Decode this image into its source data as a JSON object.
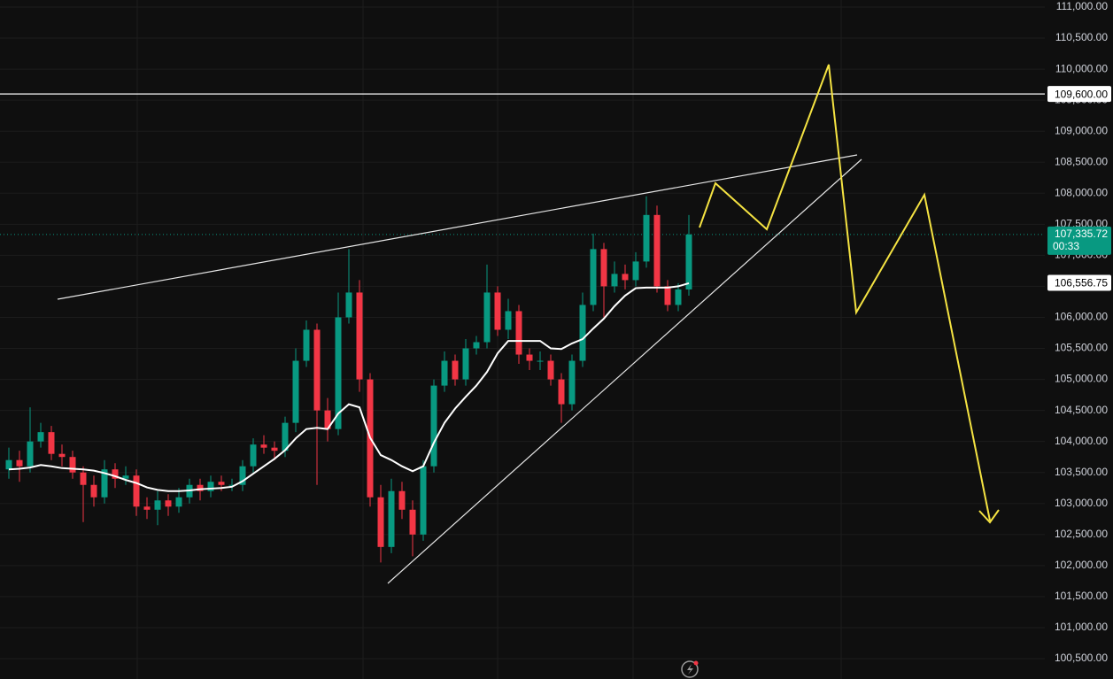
{
  "chart_data": {
    "type": "candlestick",
    "grid": true,
    "up_color": "#089981",
    "down_color": "#f23645",
    "ma_color": "#ffffff",
    "open": [
      103550,
      103700,
      103600,
      104000,
      104150,
      103800,
      103750,
      103500,
      103300,
      103100,
      103550,
      103400,
      103450,
      102950,
      102900,
      103050,
      102950,
      103100,
      103300,
      103200,
      103350,
      103300,
      103300,
      103600,
      103950,
      103900,
      103850,
      104300,
      105300,
      105800,
      104500,
      104200,
      106000,
      106400,
      105000,
      103100,
      102300,
      103200,
      102900,
      102500,
      103600,
      104900,
      105300,
      105000,
      105500,
      105600,
      106400,
      105800,
      106100,
      105400,
      105300,
      105300,
      105000,
      104600,
      105300,
      106200,
      107100,
      106500,
      106700,
      106600,
      106900,
      107650,
      106500,
      106200,
      106450
    ],
    "high": [
      103900,
      103850,
      104550,
      104300,
      104250,
      103950,
      103850,
      103600,
      103450,
      103700,
      103650,
      103600,
      103550,
      103100,
      103200,
      103150,
      103250,
      103400,
      103400,
      103450,
      103450,
      103400,
      103700,
      104050,
      104100,
      104000,
      104400,
      105500,
      105950,
      105900,
      104700,
      106400,
      107100,
      106600,
      105100,
      103300,
      103400,
      103350,
      103050,
      103700,
      105000,
      105450,
      105400,
      105650,
      105700,
      106850,
      106500,
      106300,
      106200,
      105500,
      105450,
      105400,
      105100,
      105400,
      106400,
      107350,
      107200,
      106900,
      106850,
      107050,
      107950,
      107800,
      106600,
      106550,
      107650
    ],
    "low": [
      103400,
      103350,
      103500,
      103900,
      103700,
      103600,
      103400,
      102700,
      102950,
      103000,
      103250,
      103300,
      102800,
      102750,
      102650,
      102800,
      102850,
      103000,
      103050,
      103100,
      103200,
      103200,
      103200,
      103500,
      103800,
      103700,
      103750,
      104150,
      105200,
      103300,
      104000,
      104100,
      105900,
      104800,
      102950,
      102050,
      102200,
      102750,
      102150,
      102400,
      103500,
      104800,
      104900,
      104900,
      105400,
      105500,
      105700,
      105650,
      105250,
      105150,
      105150,
      104900,
      104300,
      104500,
      105200,
      106100,
      106000,
      106400,
      106450,
      106500,
      106800,
      106400,
      106100,
      106100,
      106350
    ],
    "close": [
      103700,
      103600,
      104000,
      104150,
      103800,
      103750,
      103500,
      103300,
      103100,
      103550,
      103400,
      103450,
      102950,
      102900,
      103050,
      102950,
      103100,
      103300,
      103200,
      103350,
      103300,
      103300,
      103600,
      103950,
      103900,
      103850,
      104300,
      105300,
      105800,
      104500,
      104200,
      106000,
      106400,
      105000,
      103100,
      102300,
      103200,
      102900,
      102500,
      103600,
      104900,
      105300,
      105000,
      105500,
      105600,
      106400,
      105800,
      106100,
      105400,
      105300,
      105300,
      105000,
      104600,
      105300,
      106200,
      107100,
      106500,
      106700,
      106600,
      106900,
      107650,
      106500,
      106200,
      106450,
      107335.72
    ],
    "ma": [
      103550,
      103560,
      103580,
      103620,
      103600,
      103570,
      103560,
      103550,
      103530,
      103490,
      103440,
      103380,
      103330,
      103260,
      103220,
      103200,
      103200,
      103210,
      103230,
      103240,
      103250,
      103270,
      103360,
      103480,
      103600,
      103720,
      103860,
      104050,
      104200,
      104220,
      104200,
      104450,
      104600,
      104550,
      104060,
      103780,
      103700,
      103600,
      103520,
      103600,
      103980,
      104300,
      104530,
      104720,
      104900,
      105120,
      105420,
      105620,
      105620,
      105620,
      105620,
      105500,
      105490,
      105580,
      105650,
      105820,
      105980,
      106180,
      106350,
      106470,
      106480,
      106480,
      106480,
      106500,
      106550
    ],
    "ylim": [
      100500,
      111000
    ],
    "yticks": [
      {
        "value": 100500,
        "label": "100,500.00"
      },
      {
        "value": 101000,
        "label": "101,000.00"
      },
      {
        "value": 101500,
        "label": "101,500.00"
      },
      {
        "value": 102000,
        "label": "102,000.00"
      },
      {
        "value": 102500,
        "label": "102,500.00"
      },
      {
        "value": 103000,
        "label": "103,000.00"
      },
      {
        "value": 103500,
        "label": "103,500.00"
      },
      {
        "value": 104000,
        "label": "104,000.00"
      },
      {
        "value": 104500,
        "label": "104,500.00"
      },
      {
        "value": 105000,
        "label": "105,000.00"
      },
      {
        "value": 105500,
        "label": "105,500.00"
      },
      {
        "value": 106000,
        "label": "106,000.00"
      },
      {
        "value": 106500,
        "label": "106,500.00"
      },
      {
        "value": 107000,
        "label": "107,000.00"
      },
      {
        "value": 107500,
        "label": "107,500.00"
      },
      {
        "value": 108000,
        "label": "108,000.00"
      },
      {
        "value": 108500,
        "label": "108,500.00"
      },
      {
        "value": 109000,
        "label": "109,000.00"
      },
      {
        "value": 109500,
        "label": "109,500.00"
      },
      {
        "value": 110000,
        "label": "110,000.00"
      },
      {
        "value": 110500,
        "label": "110,500.00"
      },
      {
        "value": 111000,
        "label": "111,000.00"
      }
    ],
    "horizontal_level": {
      "value": 109600,
      "label": "109,600.00"
    },
    "current_price": {
      "value": 107335.72,
      "label": "107,335.72"
    },
    "countdown": "00:33",
    "ma_level": {
      "value": 106556.75,
      "label": "106,556.75"
    }
  }
}
